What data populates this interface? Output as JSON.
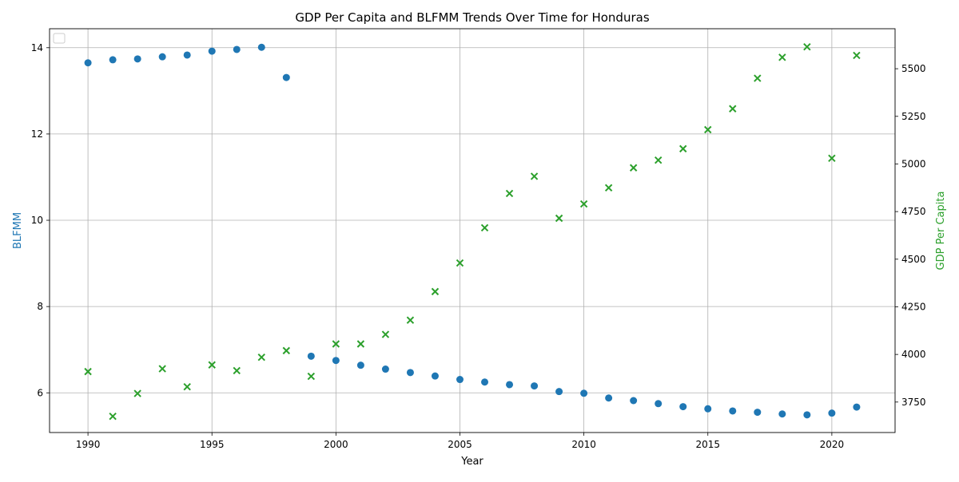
{
  "chart_data": {
    "type": "scatter",
    "title": "GDP Per Capita and BLFMM Trends Over Time for Honduras",
    "xlabel": "Year",
    "ylabel_left": "BLFMM",
    "ylabel_right": "GDP Per Capita",
    "xlim": [
      1988.45,
      2022.55
    ],
    "ylim_left": [
      5.08,
      14.44
    ],
    "ylim_right": [
      3590,
      5710
    ],
    "x_ticks": [
      1990,
      1995,
      2000,
      2005,
      2010,
      2015,
      2020
    ],
    "y_left_ticks": [
      6,
      8,
      10,
      12,
      14
    ],
    "y_right_ticks": [
      3750,
      4000,
      4250,
      4500,
      4750,
      5000,
      5250,
      5500
    ],
    "grid": true,
    "legend": "upper-left (empty)",
    "colors": {
      "blfmm": "#1f77b4",
      "gdp": "#2ca02c",
      "axis": "#000000",
      "grid": "#b0b0b0"
    },
    "series": [
      {
        "name": "BLFMM",
        "marker": "circle",
        "axis": "left",
        "x": [
          1990,
          1991,
          1992,
          1993,
          1994,
          1995,
          1996,
          1997,
          1998,
          1999,
          2000,
          2001,
          2002,
          2003,
          2004,
          2005,
          2006,
          2007,
          2008,
          2009,
          2010,
          2011,
          2012,
          2013,
          2014,
          2015,
          2016,
          2017,
          2018,
          2019,
          2020,
          2021
        ],
        "y": [
          13.65,
          13.72,
          13.74,
          13.79,
          13.83,
          13.92,
          13.96,
          14.01,
          13.31,
          6.85,
          6.75,
          6.64,
          6.55,
          6.47,
          6.39,
          6.31,
          6.25,
          6.19,
          6.16,
          6.03,
          5.99,
          5.88,
          5.82,
          5.75,
          5.68,
          5.63,
          5.58,
          5.55,
          5.51,
          5.49,
          5.53,
          5.67
        ]
      },
      {
        "name": "GDP Per Capita",
        "marker": "x",
        "axis": "right",
        "x": [
          1990,
          1991,
          1992,
          1993,
          1994,
          1995,
          1996,
          1997,
          1998,
          1999,
          2000,
          2001,
          2002,
          2003,
          2004,
          2005,
          2006,
          2007,
          2008,
          2009,
          2010,
          2011,
          2012,
          2013,
          2014,
          2015,
          2016,
          2017,
          2018,
          2019,
          2020,
          2021
        ],
        "y": [
          3910,
          3675,
          3795,
          3925,
          3830,
          3945,
          3915,
          3985,
          4020,
          3885,
          4055,
          4055,
          4105,
          4180,
          4330,
          4480,
          4665,
          4845,
          4935,
          4715,
          4790,
          4875,
          4980,
          5020,
          5080,
          5180,
          5290,
          5450,
          5560,
          5615,
          5030,
          5570
        ]
      }
    ]
  }
}
